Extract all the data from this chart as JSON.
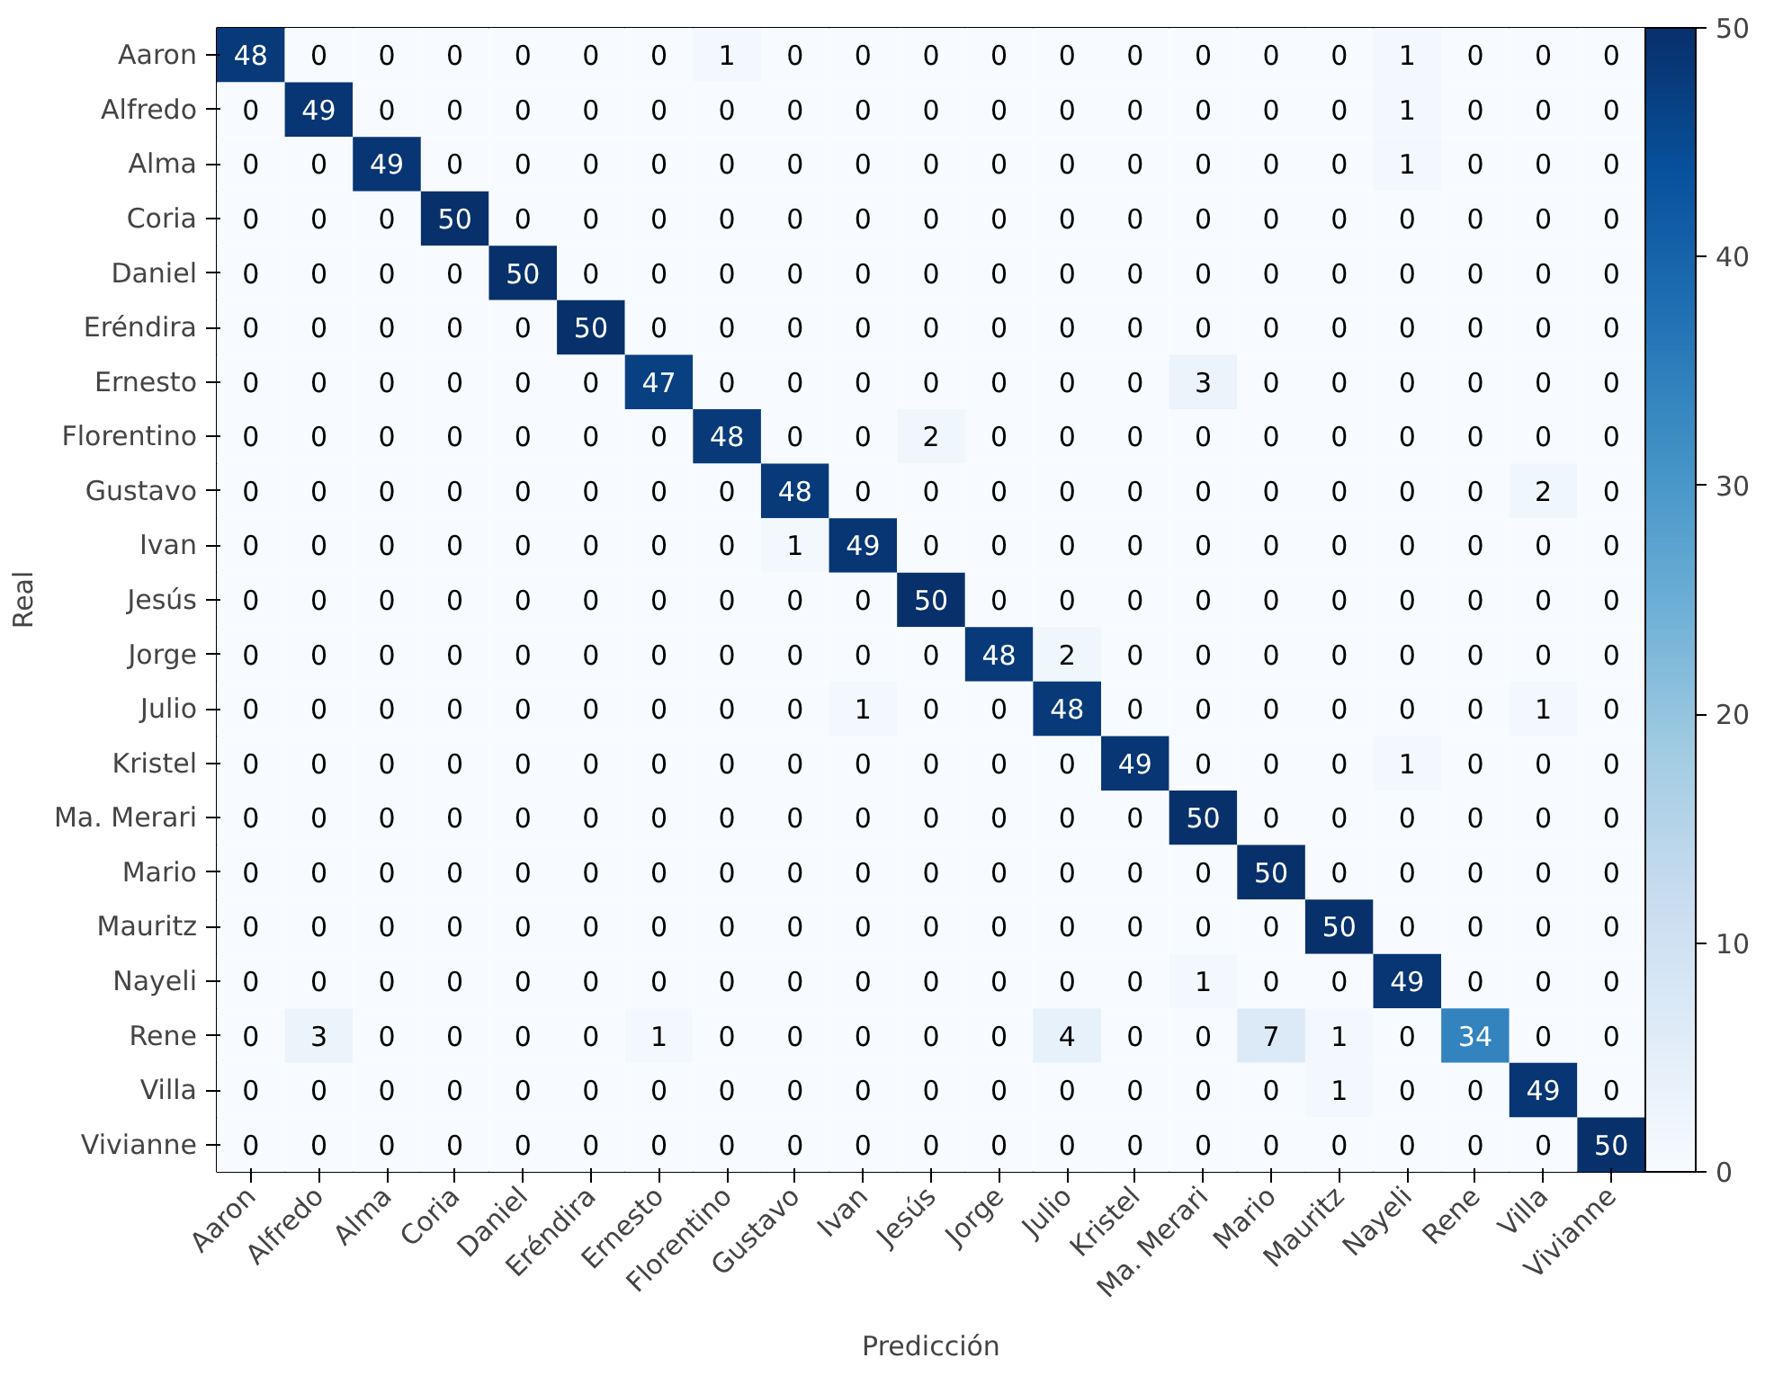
{
  "chart_data": {
    "type": "heatmap",
    "xlabel": "Predicción",
    "ylabel": "Real",
    "categories": [
      "Aaron",
      "Alfredo",
      "Alma",
      "Coria",
      "Daniel",
      "Eréndira",
      "Ernesto",
      "Florentino",
      "Gustavo",
      "Ivan",
      "Jesús",
      "Jorge",
      "Julio",
      "Kristel",
      "Ma. Merari",
      "Mario",
      "Mauritz",
      "Nayeli",
      "Rene",
      "Villa",
      "Vivianne"
    ],
    "y_categories": [
      "Aaron",
      "Alfredo",
      "Alma",
      "Coria",
      "Daniel",
      "Eréndira",
      "Ernesto",
      "Florentino",
      "Gustavo",
      "Ivan",
      "Jesús",
      "Jorge",
      "Julio",
      "Kristel",
      "Ma. Merari",
      "Mario",
      "Mauritz",
      "Nayeli",
      "Rene",
      "Villa",
      "Vivianne"
    ],
    "cells": [
      [
        48,
        0,
        0,
        0,
        0,
        0,
        0,
        1,
        0,
        0,
        0,
        0,
        0,
        0,
        0,
        0,
        0,
        1,
        0,
        0,
        0
      ],
      [
        0,
        49,
        0,
        0,
        0,
        0,
        0,
        0,
        0,
        0,
        0,
        0,
        0,
        0,
        0,
        0,
        0,
        1,
        0,
        0,
        0
      ],
      [
        0,
        0,
        49,
        0,
        0,
        0,
        0,
        0,
        0,
        0,
        0,
        0,
        0,
        0,
        0,
        0,
        0,
        1,
        0,
        0,
        0
      ],
      [
        0,
        0,
        0,
        50,
        0,
        0,
        0,
        0,
        0,
        0,
        0,
        0,
        0,
        0,
        0,
        0,
        0,
        0,
        0,
        0,
        0
      ],
      [
        0,
        0,
        0,
        0,
        50,
        0,
        0,
        0,
        0,
        0,
        0,
        0,
        0,
        0,
        0,
        0,
        0,
        0,
        0,
        0,
        0
      ],
      [
        0,
        0,
        0,
        0,
        0,
        50,
        0,
        0,
        0,
        0,
        0,
        0,
        0,
        0,
        0,
        0,
        0,
        0,
        0,
        0,
        0
      ],
      [
        0,
        0,
        0,
        0,
        0,
        0,
        47,
        0,
        0,
        0,
        0,
        0,
        0,
        0,
        3,
        0,
        0,
        0,
        0,
        0,
        0
      ],
      [
        0,
        0,
        0,
        0,
        0,
        0,
        0,
        48,
        0,
        0,
        2,
        0,
        0,
        0,
        0,
        0,
        0,
        0,
        0,
        0,
        0
      ],
      [
        0,
        0,
        0,
        0,
        0,
        0,
        0,
        0,
        48,
        0,
        0,
        0,
        0,
        0,
        0,
        0,
        0,
        0,
        0,
        2,
        0
      ],
      [
        0,
        0,
        0,
        0,
        0,
        0,
        0,
        0,
        1,
        49,
        0,
        0,
        0,
        0,
        0,
        0,
        0,
        0,
        0,
        0,
        0
      ],
      [
        0,
        0,
        0,
        0,
        0,
        0,
        0,
        0,
        0,
        0,
        50,
        0,
        0,
        0,
        0,
        0,
        0,
        0,
        0,
        0,
        0
      ],
      [
        0,
        0,
        0,
        0,
        0,
        0,
        0,
        0,
        0,
        0,
        0,
        48,
        2,
        0,
        0,
        0,
        0,
        0,
        0,
        0,
        0
      ],
      [
        0,
        0,
        0,
        0,
        0,
        0,
        0,
        0,
        0,
        1,
        0,
        0,
        48,
        0,
        0,
        0,
        0,
        0,
        0,
        1,
        0
      ],
      [
        0,
        0,
        0,
        0,
        0,
        0,
        0,
        0,
        0,
        0,
        0,
        0,
        0,
        49,
        0,
        0,
        0,
        1,
        0,
        0,
        0
      ],
      [
        0,
        0,
        0,
        0,
        0,
        0,
        0,
        0,
        0,
        0,
        0,
        0,
        0,
        0,
        50,
        0,
        0,
        0,
        0,
        0,
        0
      ],
      [
        0,
        0,
        0,
        0,
        0,
        0,
        0,
        0,
        0,
        0,
        0,
        0,
        0,
        0,
        0,
        50,
        0,
        0,
        0,
        0,
        0
      ],
      [
        0,
        0,
        0,
        0,
        0,
        0,
        0,
        0,
        0,
        0,
        0,
        0,
        0,
        0,
        0,
        0,
        50,
        0,
        0,
        0,
        0
      ],
      [
        0,
        0,
        0,
        0,
        0,
        0,
        0,
        0,
        0,
        0,
        0,
        0,
        0,
        0,
        1,
        0,
        0,
        49,
        0,
        0,
        0
      ],
      [
        0,
        3,
        0,
        0,
        0,
        0,
        1,
        0,
        0,
        0,
        0,
        0,
        4,
        0,
        0,
        7,
        1,
        0,
        34,
        0,
        0
      ],
      [
        0,
        0,
        0,
        0,
        0,
        0,
        0,
        0,
        0,
        0,
        0,
        0,
        0,
        0,
        0,
        0,
        1,
        0,
        0,
        49,
        0
      ],
      [
        0,
        0,
        0,
        0,
        0,
        0,
        0,
        0,
        0,
        0,
        0,
        0,
        0,
        0,
        0,
        0,
        0,
        0,
        0,
        0,
        50
      ]
    ],
    "data_labels": true,
    "clim": [
      0,
      50
    ],
    "cticks": [
      0,
      10,
      20,
      30,
      40,
      50
    ]
  }
}
